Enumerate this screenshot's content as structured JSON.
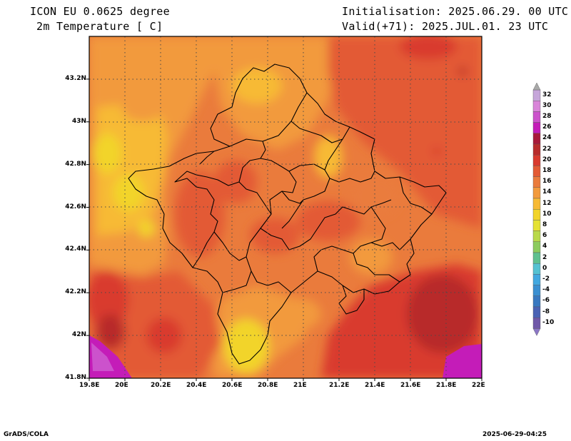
{
  "header": {
    "model": "ICON EU 0.0625 degree",
    "variable": "2m Temperature [ C]",
    "init": "Initialisation: 2025.06.29. 00 UTC",
    "valid": "Valid(+71): 2025.JUL.01. 23 UTC"
  },
  "map": {
    "lon_range": [
      19.8,
      22.0
    ],
    "lat_range": [
      41.8,
      43.4
    ],
    "gridlines": "dotted",
    "lon_ticks": [
      "19.8E",
      "20E",
      "20.2E",
      "20.4E",
      "20.6E",
      "20.8E",
      "21E",
      "21.2E",
      "21.4E",
      "21.6E",
      "21.8E",
      "22E"
    ],
    "lat_ticks": [
      "41.8N",
      "42N",
      "42.2N",
      "42.4N",
      "42.6N",
      "42.8N",
      "43N",
      "43.2N"
    ]
  },
  "colorbar": {
    "labels": [
      "32",
      "30",
      "28",
      "26",
      "24",
      "22",
      "20",
      "18",
      "16",
      "14",
      "12",
      "10",
      "8",
      "6",
      "4",
      "2",
      "0",
      "-2",
      "-4",
      "-6",
      "-8",
      "-10"
    ],
    "colors": [
      "#c6a6da",
      "#d985d9",
      "#cc52cc",
      "#c41cb8",
      "#a81a3a",
      "#b82c2c",
      "#d93a2e",
      "#e35a34",
      "#ea7b3c",
      "#f29a3d",
      "#f7ba35",
      "#f2d42a",
      "#e5e234",
      "#b9d94a",
      "#8ccb5e",
      "#5fc08f",
      "#55c2d2",
      "#42a8e0",
      "#3a8fd1",
      "#3878c0",
      "#4a62b4",
      "#7058a8"
    ]
  },
  "footer": {
    "left": "GrADS/COLA",
    "right": "2025-06-29-04:25"
  }
}
